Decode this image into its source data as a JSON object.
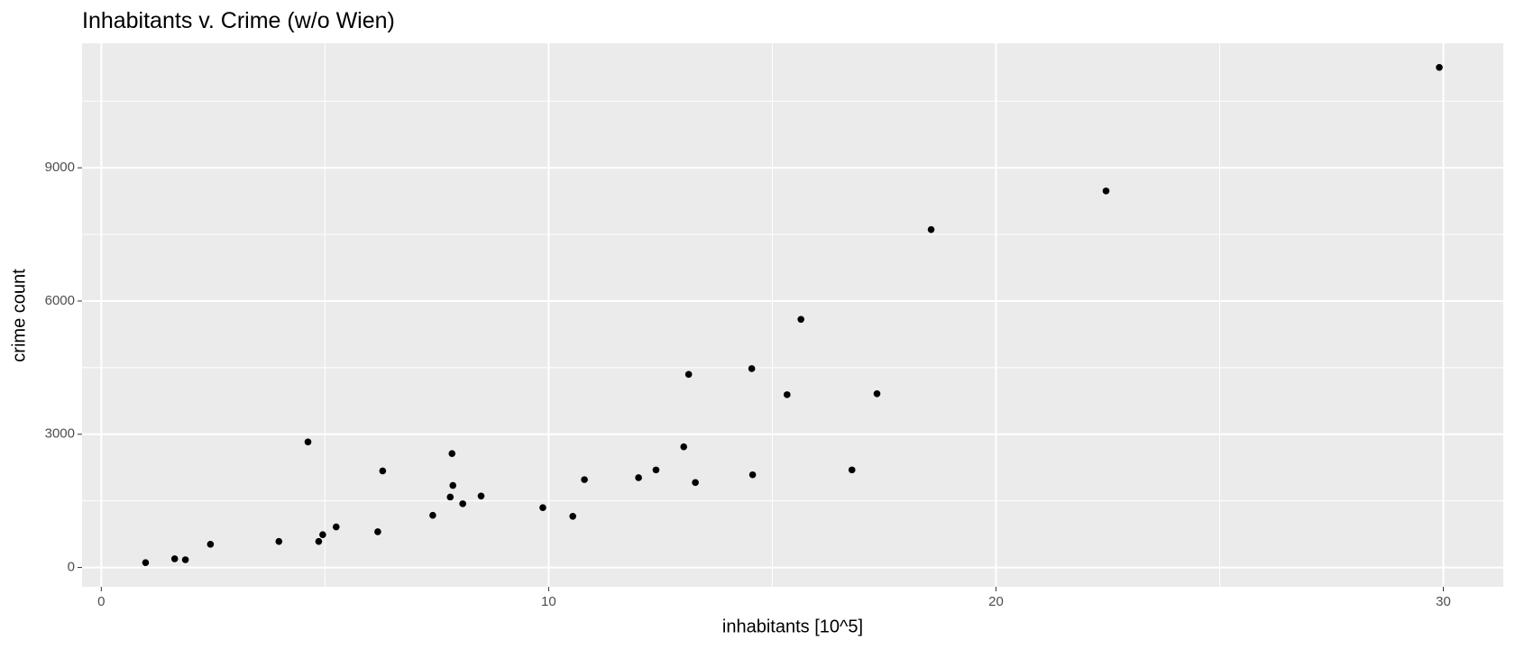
{
  "chart_data": {
    "type": "scatter",
    "title": "Inhabitants v. Crime (w/o Wien)",
    "x_label": "inhabitants [10^5]",
    "y_label": "crime count",
    "x": [
      0.99,
      1.64,
      1.88,
      2.44,
      3.97,
      4.62,
      4.86,
      4.95,
      5.25,
      6.18,
      6.29,
      7.41,
      7.8,
      7.84,
      7.86,
      8.08,
      8.49,
      9.87,
      10.54,
      10.8,
      12.01,
      12.4,
      13.02,
      13.13,
      13.28,
      14.54,
      14.56,
      15.33,
      15.64,
      16.78,
      17.34,
      18.55,
      22.46,
      29.91
    ],
    "y": [
      109,
      196,
      174,
      522,
      587,
      2826,
      587,
      739,
      913,
      804,
      2174,
      1174,
      1587,
      2565,
      1848,
      1435,
      1609,
      1348,
      1152,
      1978,
      2022,
      2196,
      2717,
      4348,
      1913,
      4478,
      2087,
      3891,
      5587,
      2196,
      3913,
      7609,
      8478,
      11261
    ],
    "color": "#000000",
    "xlim": [
      -0.43,
      31.34
    ],
    "ylim": [
      -435,
      11804
    ],
    "xticks": [
      0,
      10,
      20,
      30
    ],
    "yticks": [
      0,
      3000,
      6000,
      9000
    ],
    "minor_xticks": [
      5,
      15,
      25
    ],
    "minor_yticks": [
      1500,
      4500,
      7500,
      10500
    ],
    "grid": true
  }
}
